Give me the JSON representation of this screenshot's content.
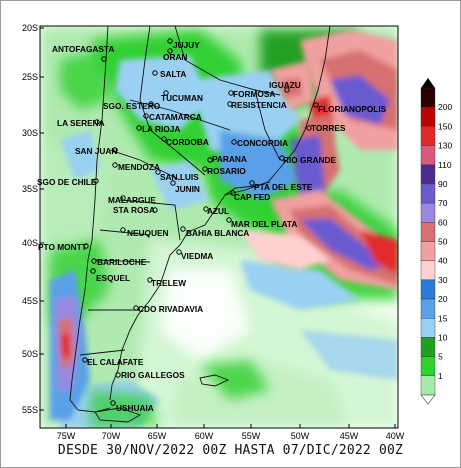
{
  "title": "DESDE 30/NOV/2022 00Z HASTA 07/DIC/2022 00Z",
  "lat_labels": [
    "20S",
    "25S",
    "30S",
    "35S",
    "40S",
    "45S",
    "50S",
    "55S"
  ],
  "lon_labels": [
    "75W",
    "70W",
    "65W",
    "60W",
    "55W",
    "50W",
    "45W",
    "40W"
  ],
  "legend_values": [
    "200",
    "150",
    "130",
    "110",
    "90",
    "70",
    "60",
    "50",
    "40",
    "30",
    "20",
    "15",
    "10",
    "5",
    "1"
  ],
  "legend_colors": [
    "#2a0000",
    "#c00000",
    "#e22a2a",
    "#d95a7a",
    "#4b2c8f",
    "#6a5ad0",
    "#9a88e0",
    "#d77070",
    "#f0a0a0",
    "#ffd0d0",
    "#2a7ad8",
    "#5aa0e8",
    "#9ad0f2",
    "#20a020",
    "#30d030",
    "#a8e8a8"
  ],
  "cities": [
    {
      "name": "ANTOFAGASTA"
    },
    {
      "name": "JUJUY"
    },
    {
      "name": "ORAN"
    },
    {
      "name": "SALTA"
    },
    {
      "name": "IGUAZU"
    },
    {
      "name": "TUCUMAN"
    },
    {
      "name": "FORMOSA"
    },
    {
      "name": "SGO. ESTERO"
    },
    {
      "name": "RESISTENCIA"
    },
    {
      "name": "CATAMARCA"
    },
    {
      "name": "FLORIANOPOLIS"
    },
    {
      "name": "LA SERENA"
    },
    {
      "name": "LA RIOJA"
    },
    {
      "name": "TORRES"
    },
    {
      "name": "CORDOBA"
    },
    {
      "name": "CONCORDIA"
    },
    {
      "name": "SAN JUAN"
    },
    {
      "name": "PARANA"
    },
    {
      "name": "RIO GRANDE"
    },
    {
      "name": "MENDOZA"
    },
    {
      "name": "ROSARIO"
    },
    {
      "name": "SAN LUIS"
    },
    {
      "name": "SGO DE CHILE"
    },
    {
      "name": "JUNIN"
    },
    {
      "name": "PTA DEL ESTE"
    },
    {
      "name": "CAP FED"
    },
    {
      "name": "MALARGUE"
    },
    {
      "name": "STA ROSA"
    },
    {
      "name": "AZUL"
    },
    {
      "name": "MAR DEL PLATA"
    },
    {
      "name": "NEUQUEN"
    },
    {
      "name": "BAHIA BLANCA"
    },
    {
      "name": "PTO MONTT"
    },
    {
      "name": "VIEDMA"
    },
    {
      "name": "BARILOCHE"
    },
    {
      "name": "ESQUEL"
    },
    {
      "name": "TRELEW"
    },
    {
      "name": "CDO RIVADAVIA"
    },
    {
      "name": "EL CALAFATE"
    },
    {
      "name": "RIO GALLEGOS"
    },
    {
      "name": "USHUAIA"
    }
  ]
}
